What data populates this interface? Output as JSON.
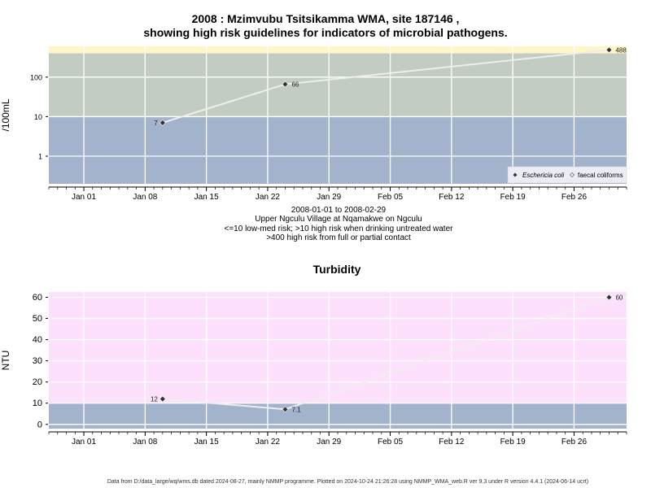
{
  "header": {
    "title_line1": "2008 : Mzimvubu Tsitsikamma WMA, site 187146 ,",
    "title_line2": "showing high risk guidelines for indicators of microbial pathogens."
  },
  "caption": {
    "line1": "2008-01-01 to 2008-02-29",
    "line2": "Upper Ngculu Village at Nqamakwe on Ngculu",
    "line3": "<=10 low-med risk; >10 high risk when drinking untreated water",
    "line4": ">400 high risk from full or partial contact"
  },
  "footer": {
    "text": "Data from D:/data_large/wq/wms.db dated 2024-08-27, mainly NMMP programme. Plotted on 2024-10-24 21:26:28 using NMMP_WMA_web.R ver 9.3 under R version 4.4.1 (2024-06-14 ucrt)"
  },
  "colors": {
    "band_low": "#a3b3cc",
    "band_mid": "#c3ccc3",
    "band_high": "#fff5c6",
    "band_turb_low": "#a3b3cc",
    "band_turb_high": "#fde0fc",
    "grid": "#ffffff",
    "line": "#eeeeee",
    "marker": "#333333"
  },
  "chart_data": [
    {
      "type": "line",
      "title": "",
      "ylabel": "/100mL",
      "yscale": "log",
      "ylim": [
        0.2,
        600
      ],
      "yticks": [
        1,
        10,
        100
      ],
      "ytick_labels": [
        "1",
        "10",
        "100"
      ],
      "xrange": [
        "2007-12-28",
        "2008-03-03"
      ],
      "xticks": [
        "2008-01-01",
        "2008-01-08",
        "2008-01-15",
        "2008-01-22",
        "2008-01-29",
        "2008-02-05",
        "2008-02-12",
        "2008-02-19",
        "2008-02-26"
      ],
      "xtick_labels": [
        "Jan 01",
        "Jan 08",
        "Jan 15",
        "Jan 22",
        "Jan 29",
        "Feb 05",
        "Feb 12",
        "Feb 19",
        "Feb 26"
      ],
      "bands": [
        {
          "from": 0.2,
          "to": 10,
          "color": "#a3b3cc"
        },
        {
          "from": 10,
          "to": 400,
          "color": "#c3ccc3"
        },
        {
          "from": 400,
          "to": 600,
          "color": "#fff5c6"
        }
      ],
      "grid": true,
      "legend_position": "bottom-right",
      "series": [
        {
          "name": "Eschericia coli",
          "marker": "filled-diamond",
          "points": [
            {
              "x": "2008-01-10",
              "y": 7,
              "label": "7",
              "label_side": "left"
            },
            {
              "x": "2008-01-24",
              "y": 66,
              "label": "66",
              "label_side": "right"
            },
            {
              "x": "2008-03-01",
              "y": 488,
              "label": "488",
              "label_side": "right"
            }
          ]
        },
        {
          "name": "faecal coliforms",
          "marker": "open-diamond",
          "points": []
        }
      ]
    },
    {
      "type": "line",
      "title": "Turbidity",
      "ylabel": "NTU",
      "yscale": "linear",
      "ylim": [
        -2,
        62.5
      ],
      "yticks": [
        0,
        10,
        20,
        30,
        40,
        50,
        60
      ],
      "ytick_labels": [
        "0",
        "10",
        "20",
        "30",
        "40",
        "50",
        "60"
      ],
      "xrange": [
        "2007-12-28",
        "2008-03-03"
      ],
      "xticks": [
        "2008-01-01",
        "2008-01-08",
        "2008-01-15",
        "2008-01-22",
        "2008-01-29",
        "2008-02-05",
        "2008-02-12",
        "2008-02-19",
        "2008-02-26"
      ],
      "xtick_labels": [
        "Jan 01",
        "Jan 08",
        "Jan 15",
        "Jan 22",
        "Jan 29",
        "Feb 05",
        "Feb 12",
        "Feb 19",
        "Feb 26"
      ],
      "bands": [
        {
          "from": -2,
          "to": 10,
          "color": "#a3b3cc"
        },
        {
          "from": 10,
          "to": 62.5,
          "color": "#fde0fc"
        }
      ],
      "grid": true,
      "series": [
        {
          "marker": "filled-diamond",
          "points": [
            {
              "x": "2008-01-10",
              "y": 12,
              "label": "12",
              "label_side": "left"
            },
            {
              "x": "2008-01-24",
              "y": 7.1,
              "label": "7.1",
              "label_side": "right"
            },
            {
              "x": "2008-03-01",
              "y": 60,
              "label": "60",
              "label_side": "right"
            }
          ]
        }
      ]
    }
  ]
}
